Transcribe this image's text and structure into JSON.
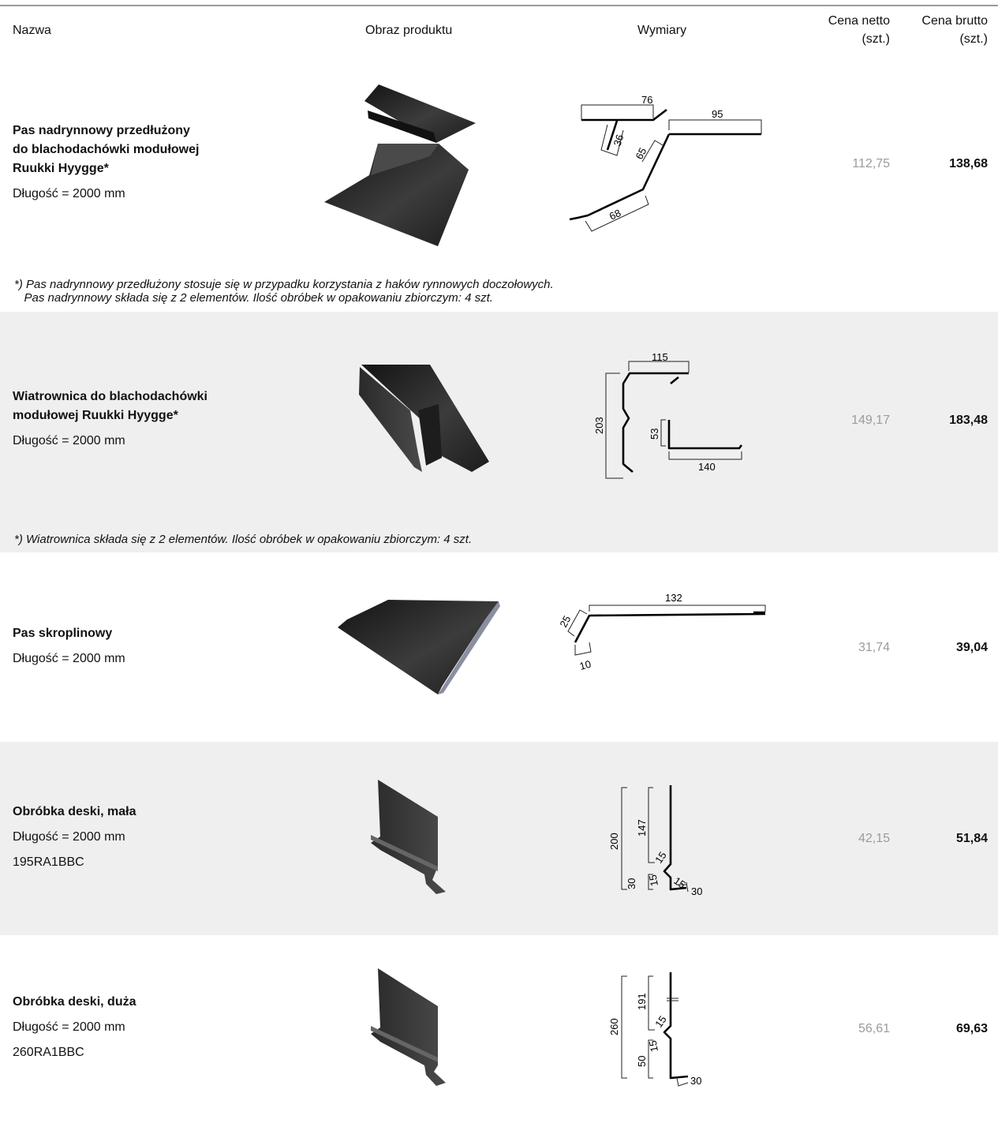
{
  "header": {
    "name": "Nazwa",
    "image": "Obraz produktu",
    "dimensions": "Wymiary",
    "net_price": "Cena netto\n(szt.)",
    "gross_price": "Cena brutto\n(szt.)"
  },
  "rows": [
    {
      "name": "Pas nadrynnowy przedłużony\ndo blachodachówki modułowej\nRuukki Hyygge*",
      "details": [
        "Długość = 2000 mm"
      ],
      "dimensions": [
        "76",
        "95",
        "36",
        "65",
        "68"
      ],
      "net_price": "112,75",
      "gross_price": "138,68",
      "footnote": "*) Pas nadrynnowy przedłużony stosuje się w przypadku korzystania z haków rynnowych doczołowych.\n   Pas nadrynnowy składa się z 2 elementów. Ilość obróbek w opakowaniu zbiorczym: 4 szt."
    },
    {
      "name": "Wiatrownica do blachodachówki\nmodułowej Ruukki Hyygge*",
      "details": [
        "Długość = 2000 mm"
      ],
      "dimensions": [
        "115",
        "203",
        "53",
        "140"
      ],
      "net_price": "149,17",
      "gross_price": "183,48",
      "footnote": "*) Wiatrownica składa się z 2 elementów. Ilość obróbek w opakowaniu zbiorczym: 4 szt."
    },
    {
      "name": "Pas skroplinowy",
      "details": [
        "Długość = 2000 mm"
      ],
      "dimensions": [
        "132",
        "25",
        "10"
      ],
      "net_price": "31,74",
      "gross_price": "39,04"
    },
    {
      "name": "Obróbka deski, mała",
      "details": [
        "Długość = 2000 mm",
        "195RA1BBC"
      ],
      "dimensions": [
        "200",
        "147",
        "15",
        "30",
        "15",
        "15",
        "30"
      ],
      "net_price": "42,15",
      "gross_price": "51,84"
    },
    {
      "name": "Obróbka deski, duża",
      "details": [
        "Długość = 2000 mm",
        "260RA1BBC"
      ],
      "dimensions": [
        "260",
        "191",
        "15",
        "50",
        "15",
        "30"
      ],
      "net_price": "56,61",
      "gross_price": "69,63"
    }
  ]
}
